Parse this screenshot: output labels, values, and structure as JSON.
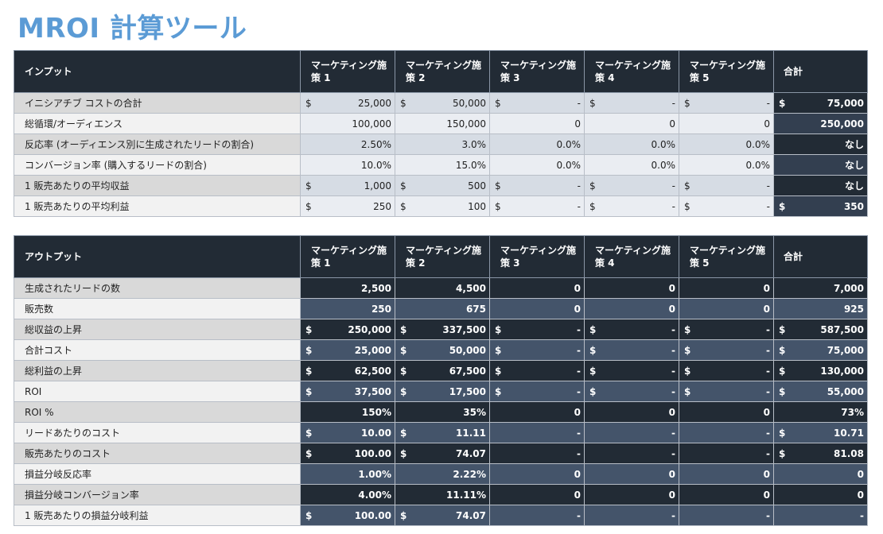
{
  "title": "MROI 計算ツール",
  "input": {
    "header": [
      "インプット",
      "マーケティング施策 1",
      "マーケティング施策 2",
      "マーケティング施策 3",
      "マーケティング施策 4",
      "マーケティング施策 5",
      "合計"
    ],
    "rows": [
      {
        "label": "イニシアチブ コストの合計",
        "cells": [
          {
            "c": "$",
            "v": "25,000"
          },
          {
            "c": "$",
            "v": "50,000"
          },
          {
            "c": "$",
            "v": "-"
          },
          {
            "c": "$",
            "v": "-"
          },
          {
            "c": "$",
            "v": "-"
          },
          {
            "c": "$",
            "v": "75,000"
          }
        ]
      },
      {
        "label": "総循環/オーディエンス",
        "cells": [
          {
            "c": "",
            "v": "100,000"
          },
          {
            "c": "",
            "v": "150,000"
          },
          {
            "c": "",
            "v": "0"
          },
          {
            "c": "",
            "v": "0"
          },
          {
            "c": "",
            "v": "0"
          },
          {
            "c": "",
            "v": "250,000"
          }
        ]
      },
      {
        "label": "反応率 (オーディエンス別に生成されたリードの割合)",
        "cells": [
          {
            "c": "",
            "v": "2.50%"
          },
          {
            "c": "",
            "v": "3.0%"
          },
          {
            "c": "",
            "v": "0.0%"
          },
          {
            "c": "",
            "v": "0.0%"
          },
          {
            "c": "",
            "v": "0.0%"
          },
          {
            "c": "",
            "v": "なし"
          }
        ]
      },
      {
        "label": "コンバージョン率 (購入するリードの割合)",
        "cells": [
          {
            "c": "",
            "v": "10.0%"
          },
          {
            "c": "",
            "v": "15.0%"
          },
          {
            "c": "",
            "v": "0.0%"
          },
          {
            "c": "",
            "v": "0.0%"
          },
          {
            "c": "",
            "v": "0.0%"
          },
          {
            "c": "",
            "v": "なし"
          }
        ]
      },
      {
        "label": "1 販売あたりの平均収益",
        "cells": [
          {
            "c": "$",
            "v": "1,000"
          },
          {
            "c": "$",
            "v": "500"
          },
          {
            "c": "$",
            "v": "-"
          },
          {
            "c": "$",
            "v": "-"
          },
          {
            "c": "$",
            "v": "-"
          },
          {
            "c": "",
            "v": "なし"
          }
        ]
      },
      {
        "label": "1 販売あたりの平均利益",
        "cells": [
          {
            "c": "$",
            "v": "250"
          },
          {
            "c": "$",
            "v": "100"
          },
          {
            "c": "$",
            "v": "-"
          },
          {
            "c": "$",
            "v": "-"
          },
          {
            "c": "$",
            "v": "-"
          },
          {
            "c": "$",
            "v": "350"
          }
        ]
      }
    ]
  },
  "output": {
    "header": [
      "アウトプット",
      "マーケティング施策 1",
      "マーケティング施策 2",
      "マーケティング施策 3",
      "マーケティング施策 4",
      "マーケティング施策 5",
      "合計"
    ],
    "rows": [
      {
        "label": "生成されたリードの数",
        "cells": [
          {
            "c": "",
            "v": "2,500"
          },
          {
            "c": "",
            "v": "4,500"
          },
          {
            "c": "",
            "v": "0"
          },
          {
            "c": "",
            "v": "0"
          },
          {
            "c": "",
            "v": "0"
          },
          {
            "c": "",
            "v": "7,000"
          }
        ]
      },
      {
        "label": "販売数",
        "cells": [
          {
            "c": "",
            "v": "250"
          },
          {
            "c": "",
            "v": "675"
          },
          {
            "c": "",
            "v": "0"
          },
          {
            "c": "",
            "v": "0"
          },
          {
            "c": "",
            "v": "0"
          },
          {
            "c": "",
            "v": "925"
          }
        ]
      },
      {
        "label": "総収益の上昇",
        "cells": [
          {
            "c": "$",
            "v": "250,000"
          },
          {
            "c": "$",
            "v": "337,500"
          },
          {
            "c": "$",
            "v": "-"
          },
          {
            "c": "$",
            "v": "-"
          },
          {
            "c": "$",
            "v": "-"
          },
          {
            "c": "$",
            "v": "587,500"
          }
        ]
      },
      {
        "label": "合計コスト",
        "cells": [
          {
            "c": "$",
            "v": "25,000"
          },
          {
            "c": "$",
            "v": "50,000"
          },
          {
            "c": "$",
            "v": "-"
          },
          {
            "c": "$",
            "v": "-"
          },
          {
            "c": "$",
            "v": "-"
          },
          {
            "c": "$",
            "v": "75,000"
          }
        ]
      },
      {
        "label": "総利益の上昇",
        "cells": [
          {
            "c": "$",
            "v": "62,500"
          },
          {
            "c": "$",
            "v": "67,500"
          },
          {
            "c": "$",
            "v": "-"
          },
          {
            "c": "$",
            "v": "-"
          },
          {
            "c": "$",
            "v": "-"
          },
          {
            "c": "$",
            "v": "130,000"
          }
        ]
      },
      {
        "label": "ROI",
        "cells": [
          {
            "c": "$",
            "v": "37,500"
          },
          {
            "c": "$",
            "v": "17,500"
          },
          {
            "c": "$",
            "v": "-"
          },
          {
            "c": "$",
            "v": "-"
          },
          {
            "c": "$",
            "v": "-"
          },
          {
            "c": "$",
            "v": "55,000"
          }
        ]
      },
      {
        "label": "ROI %",
        "cells": [
          {
            "c": "",
            "v": "150%"
          },
          {
            "c": "",
            "v": "35%"
          },
          {
            "c": "",
            "v": "0"
          },
          {
            "c": "",
            "v": "0"
          },
          {
            "c": "",
            "v": "0"
          },
          {
            "c": "",
            "v": "73%"
          }
        ]
      },
      {
        "label": "リードあたりのコスト",
        "cells": [
          {
            "c": "$",
            "v": "10.00"
          },
          {
            "c": "$",
            "v": "11.11"
          },
          {
            "c": "",
            "v": "-"
          },
          {
            "c": "",
            "v": "-"
          },
          {
            "c": "",
            "v": "-"
          },
          {
            "c": "$",
            "v": "10.71"
          }
        ]
      },
      {
        "label": "販売あたりのコスト",
        "cells": [
          {
            "c": "$",
            "v": "100.00"
          },
          {
            "c": "$",
            "v": "74.07"
          },
          {
            "c": "",
            "v": "-"
          },
          {
            "c": "",
            "v": "-"
          },
          {
            "c": "",
            "v": "-"
          },
          {
            "c": "$",
            "v": "81.08"
          }
        ]
      },
      {
        "label": "損益分岐反応率",
        "cells": [
          {
            "c": "",
            "v": "1.00%"
          },
          {
            "c": "",
            "v": "2.22%"
          },
          {
            "c": "",
            "v": "0"
          },
          {
            "c": "",
            "v": "0"
          },
          {
            "c": "",
            "v": "0"
          },
          {
            "c": "",
            "v": "0"
          }
        ]
      },
      {
        "label": "損益分岐コンバージョン率",
        "cells": [
          {
            "c": "",
            "v": "4.00%"
          },
          {
            "c": "",
            "v": "11.11%"
          },
          {
            "c": "",
            "v": "0"
          },
          {
            "c": "",
            "v": "0"
          },
          {
            "c": "",
            "v": "0"
          },
          {
            "c": "",
            "v": "0"
          }
        ]
      },
      {
        "label": "1 販売あたりの損益分岐利益",
        "cells": [
          {
            "c": "$",
            "v": "100.00"
          },
          {
            "c": "$",
            "v": "74.07"
          },
          {
            "c": "",
            "v": "-"
          },
          {
            "c": "",
            "v": "-"
          },
          {
            "c": "",
            "v": "-"
          },
          {
            "c": "",
            "v": "-"
          }
        ]
      }
    ]
  }
}
